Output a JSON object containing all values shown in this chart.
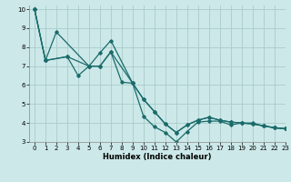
{
  "xlabel": "Humidex (Indice chaleur)",
  "bg_color": "#cce8e8",
  "grid_color": "#aacccc",
  "line_color": "#1a6b6b",
  "xlim": [
    -0.5,
    23
  ],
  "ylim": [
    3,
    10.2
  ],
  "xticks": [
    0,
    1,
    2,
    3,
    4,
    5,
    6,
    7,
    8,
    9,
    10,
    11,
    12,
    13,
    14,
    15,
    16,
    17,
    18,
    19,
    20,
    21,
    22,
    23
  ],
  "yticks": [
    3,
    4,
    5,
    6,
    7,
    8,
    9,
    10
  ],
  "line1_x": [
    0,
    1,
    2,
    5,
    6,
    7,
    9,
    10,
    11,
    12,
    13,
    14,
    15,
    16,
    17,
    18,
    19,
    20,
    21,
    22,
    23
  ],
  "line1_y": [
    10.0,
    7.3,
    8.8,
    7.0,
    7.7,
    8.35,
    6.1,
    4.35,
    3.8,
    3.5,
    3.0,
    3.55,
    4.05,
    4.1,
    4.1,
    3.9,
    4.0,
    4.0,
    3.85,
    3.75,
    3.7
  ],
  "line2_x": [
    0,
    1,
    3,
    4,
    5,
    6,
    7,
    9,
    10,
    11,
    12,
    13,
    14,
    15,
    16,
    17,
    18,
    19,
    20,
    21,
    22,
    23
  ],
  "line2_y": [
    10.0,
    7.3,
    7.5,
    6.5,
    7.0,
    7.0,
    7.75,
    6.1,
    5.25,
    4.6,
    3.95,
    3.5,
    3.9,
    4.15,
    4.3,
    4.15,
    4.05,
    4.0,
    3.95,
    3.85,
    3.75,
    3.7
  ],
  "line3_x": [
    0,
    1,
    3,
    5,
    6,
    7,
    8,
    9,
    10,
    11,
    12,
    13,
    14,
    15,
    16,
    17,
    18,
    19,
    20,
    21,
    22,
    23
  ],
  "line3_y": [
    10.0,
    7.3,
    7.5,
    7.0,
    7.0,
    7.75,
    6.15,
    6.1,
    5.25,
    4.6,
    3.95,
    3.5,
    3.9,
    4.15,
    4.3,
    4.15,
    4.05,
    4.0,
    3.95,
    3.85,
    3.75,
    3.7
  ]
}
